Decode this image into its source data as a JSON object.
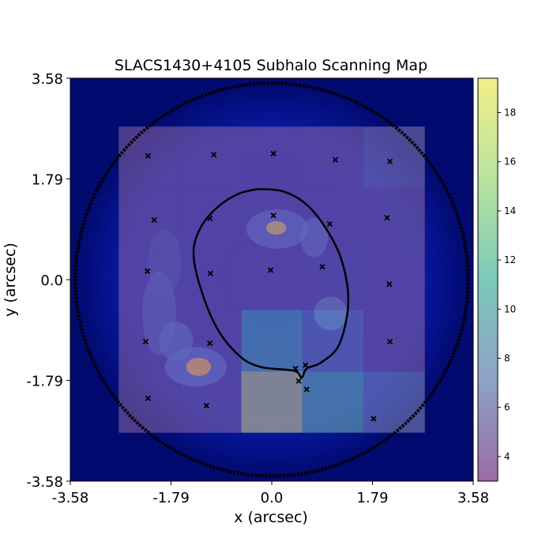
{
  "chart_data": {
    "type": "heatmap",
    "title": "SLACS1430+4105 Subhalo Scanning Map",
    "xlabel": "x (arcsec)",
    "ylabel": "y (arcsec)",
    "xlim": [
      -3.58,
      3.58
    ],
    "ylim": [
      -3.58,
      3.58
    ],
    "x_ticks": [
      "-3.58",
      "-1.79",
      "0.0",
      "1.79",
      "3.58"
    ],
    "y_ticks": [
      "-3.58",
      "-1.79",
      "0.0",
      "1.79",
      "3.58"
    ],
    "grid": false,
    "colorbar": {
      "min": 3.0,
      "max": 19.4,
      "ticks": [
        "4",
        "6",
        "8",
        "10",
        "12",
        "14",
        "16",
        "18"
      ],
      "colormap": [
        "#9b6aa6",
        "#8ea2c8",
        "#7cc8b9",
        "#b9e49f",
        "#f3ee8a"
      ]
    },
    "scan_grid": {
      "x_edges": [
        -2.72,
        -1.63,
        -0.54,
        0.54,
        1.63,
        2.72
      ],
      "y_edges": [
        2.72,
        1.63,
        0.54,
        -0.54,
        -1.63,
        -2.72
      ],
      "values": [
        [
          3.3,
          3.2,
          3.1,
          3.4,
          5.0
        ],
        [
          3.3,
          3.2,
          3.3,
          3.4,
          3.5
        ],
        [
          3.4,
          3.3,
          3.5,
          3.6,
          3.4
        ],
        [
          3.3,
          3.4,
          10.5,
          6.0,
          3.4
        ],
        [
          3.4,
          3.5,
          19.4,
          11.5,
          6.5
        ]
      ]
    },
    "subhalo_positions": [
      {
        "x": -2.2,
        "y": 2.2
      },
      {
        "x": -1.03,
        "y": 2.22
      },
      {
        "x": 0.03,
        "y": 2.24
      },
      {
        "x": 1.13,
        "y": 2.13
      },
      {
        "x": 2.1,
        "y": 2.1
      },
      {
        "x": -2.09,
        "y": 1.06
      },
      {
        "x": -1.1,
        "y": 1.09
      },
      {
        "x": 0.03,
        "y": 1.14
      },
      {
        "x": 1.03,
        "y": 0.99
      },
      {
        "x": 2.05,
        "y": 1.1
      },
      {
        "x": -2.21,
        "y": 0.15
      },
      {
        "x": -1.09,
        "y": 0.11
      },
      {
        "x": -0.02,
        "y": 0.17
      },
      {
        "x": 0.9,
        "y": 0.23
      },
      {
        "x": 2.09,
        "y": -0.08
      },
      {
        "x": -2.24,
        "y": -1.1
      },
      {
        "x": -1.1,
        "y": -1.13
      },
      {
        "x": 2.1,
        "y": -1.1
      },
      {
        "x": 0.42,
        "y": -1.58
      },
      {
        "x": 0.6,
        "y": -1.52
      },
      {
        "x": 0.48,
        "y": -1.8
      },
      {
        "x": 0.62,
        "y": -1.95
      },
      {
        "x": -2.2,
        "y": -2.11
      },
      {
        "x": -1.16,
        "y": -2.24
      },
      {
        "x": 1.81,
        "y": -2.47
      }
    ],
    "critical_curve_inner": [
      [
        -0.25,
        1.61
      ],
      [
        0.2,
        1.57
      ],
      [
        0.6,
        1.35
      ],
      [
        0.95,
        0.93
      ],
      [
        1.24,
        0.35
      ],
      [
        1.36,
        -0.4
      ],
      [
        1.2,
        -1.15
      ],
      [
        0.88,
        -1.47
      ],
      [
        0.62,
        -1.58
      ],
      [
        0.53,
        -1.74
      ],
      [
        0.4,
        -1.62
      ],
      [
        -0.2,
        -1.55
      ],
      [
        -0.58,
        -1.35
      ],
      [
        -0.98,
        -0.85
      ],
      [
        -1.28,
        -0.1
      ],
      [
        -1.39,
        0.5
      ],
      [
        -1.25,
        0.95
      ],
      [
        -0.95,
        1.3
      ],
      [
        -0.58,
        1.53
      ],
      [
        -0.25,
        1.61
      ]
    ],
    "critical_curve_outer": {
      "center": [
        0.0,
        0.0
      ],
      "radius": 3.49
    }
  }
}
